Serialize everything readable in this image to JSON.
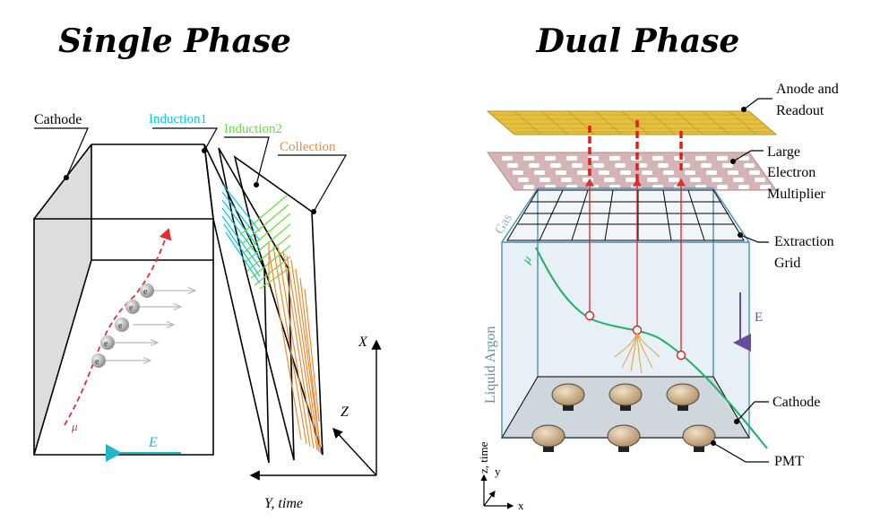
{
  "left": {
    "title": "Single Phase",
    "cathode": "Cathode",
    "induction1": "Induction1",
    "induction2": "Induction2",
    "collection": "Collection",
    "muon": "μ",
    "electron": "e",
    "efield": "E",
    "axis_x": "X",
    "axis_z": "Z",
    "axis_y": "Y, time",
    "colors": {
      "induction1": "#00c8e8",
      "induction2": "#66dd33",
      "collection": "#f08a30",
      "track": "#e03030",
      "efield": "#20b8c8"
    }
  },
  "right": {
    "title": "Dual Phase",
    "anode_1": "Anode and",
    "anode_2": "Readout",
    "lem_1": "Large",
    "lem_2": "Electron",
    "lem_3": "Multiplier",
    "grid_1": "Extraction",
    "grid_2": "Grid",
    "cathode": "Cathode",
    "pmt": "PMT",
    "gas": "Gas",
    "liquid": "Liquid Argon",
    "muon": "μ",
    "efield": "E",
    "axis_z": "z, time",
    "axis_y": "y",
    "axis_x": "x",
    "colors": {
      "anode": "#e8c040",
      "lem": "#d4b4b4",
      "box": "#4a90b8",
      "muon": "#20b060",
      "signal": "#e02020",
      "efield": "#6a4a9a"
    }
  }
}
